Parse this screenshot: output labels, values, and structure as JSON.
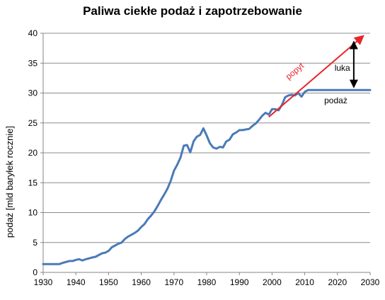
{
  "chart_data": {
    "type": "line",
    "title": "Paliwa ciekłe podaż i zapotrzebowanie",
    "xlabel": "",
    "ylabel": "podaż  [mld baryłek rocznie]",
    "xlim": [
      1930,
      2030
    ],
    "ylim": [
      0,
      40
    ],
    "x_ticks": [
      1930,
      1940,
      1950,
      1960,
      1970,
      1980,
      1990,
      2000,
      2010,
      2020,
      2030
    ],
    "y_ticks": [
      0,
      5,
      10,
      15,
      20,
      25,
      30,
      35,
      40
    ],
    "grid": "horizontal",
    "series": [
      {
        "name": "podaż",
        "color": "#4a7ab8",
        "points": [
          [
            1930,
            1.4
          ],
          [
            1935,
            1.4
          ],
          [
            1936,
            1.6
          ],
          [
            1938,
            1.9
          ],
          [
            1939,
            1.9
          ],
          [
            1940,
            2.1
          ],
          [
            1941,
            2.2
          ],
          [
            1942,
            2.0
          ],
          [
            1943,
            2.2
          ],
          [
            1945,
            2.5
          ],
          [
            1946,
            2.6
          ],
          [
            1947,
            2.9
          ],
          [
            1948,
            3.2
          ],
          [
            1949,
            3.3
          ],
          [
            1950,
            3.6
          ],
          [
            1951,
            4.2
          ],
          [
            1952,
            4.5
          ],
          [
            1953,
            4.8
          ],
          [
            1954,
            5.0
          ],
          [
            1955,
            5.6
          ],
          [
            1956,
            6.0
          ],
          [
            1957,
            6.3
          ],
          [
            1958,
            6.6
          ],
          [
            1959,
            7.0
          ],
          [
            1960,
            7.6
          ],
          [
            1961,
            8.1
          ],
          [
            1962,
            8.9
          ],
          [
            1963,
            9.5
          ],
          [
            1964,
            10.2
          ],
          [
            1965,
            11.1
          ],
          [
            1966,
            12.1
          ],
          [
            1967,
            13.0
          ],
          [
            1968,
            14.0
          ],
          [
            1969,
            15.3
          ],
          [
            1970,
            17.0
          ],
          [
            1971,
            18.0
          ],
          [
            1972,
            19.2
          ],
          [
            1973,
            21.2
          ],
          [
            1974,
            21.3
          ],
          [
            1975,
            20.1
          ],
          [
            1976,
            21.9
          ],
          [
            1977,
            22.7
          ],
          [
            1978,
            23.0
          ],
          [
            1979,
            24.1
          ],
          [
            1980,
            22.9
          ],
          [
            1981,
            21.6
          ],
          [
            1982,
            20.9
          ],
          [
            1983,
            20.7
          ],
          [
            1984,
            21.0
          ],
          [
            1985,
            20.9
          ],
          [
            1986,
            21.9
          ],
          [
            1987,
            22.2
          ],
          [
            1988,
            23.1
          ],
          [
            1989,
            23.4
          ],
          [
            1990,
            23.8
          ],
          [
            1991,
            23.8
          ],
          [
            1992,
            23.9
          ],
          [
            1993,
            24.0
          ],
          [
            1994,
            24.5
          ],
          [
            1995,
            24.9
          ],
          [
            1996,
            25.5
          ],
          [
            1997,
            26.2
          ],
          [
            1998,
            26.7
          ],
          [
            1999,
            26.4
          ],
          [
            2000,
            27.3
          ],
          [
            2001,
            27.3
          ],
          [
            2002,
            27.1
          ],
          [
            2003,
            28.0
          ],
          [
            2004,
            29.3
          ],
          [
            2005,
            29.6
          ],
          [
            2006,
            29.7
          ],
          [
            2007,
            29.6
          ],
          [
            2008,
            30.0
          ],
          [
            2009,
            29.4
          ],
          [
            2010,
            30.2
          ],
          [
            2011,
            30.5
          ],
          [
            2030,
            30.5
          ]
        ]
      },
      {
        "name": "popyt",
        "color": "#e8252a",
        "points": [
          [
            1999,
            26.0
          ],
          [
            2028,
            39.6
          ]
        ]
      }
    ],
    "annotations": {
      "popyt_label": "popyt",
      "luka_label": "luka",
      "podaz_label": "podaż",
      "luka_arrow": {
        "x": 2025,
        "y_from": 30.6,
        "y_to": 38.6
      }
    }
  }
}
